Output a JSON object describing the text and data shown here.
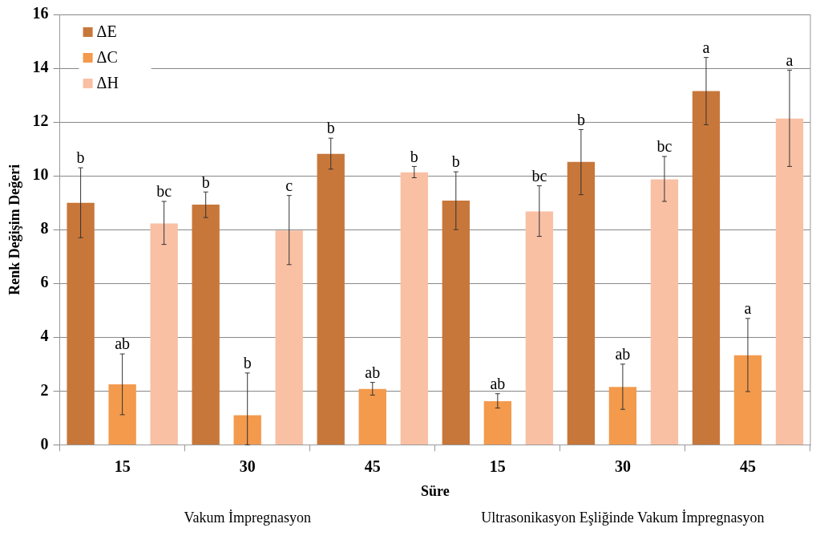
{
  "chart_data": {
    "type": "bar",
    "xlabel": "Süre",
    "ylabel": "Renk Değişim Değeri",
    "categories": [
      "15",
      "30",
      "45",
      "15",
      "30",
      "45"
    ],
    "series": [
      {
        "name": "ΔE",
        "color": "#c8773a",
        "values": [
          9.0,
          8.93,
          10.82,
          9.08,
          10.52,
          13.15
        ],
        "errors": [
          [
            7.7,
            10.3
          ],
          [
            8.45,
            9.4
          ],
          [
            10.25,
            11.4
          ],
          [
            8.0,
            10.15
          ],
          [
            9.3,
            11.72
          ],
          [
            11.9,
            14.4
          ]
        ],
        "value_labels": [
          "b",
          "b",
          "b",
          "b",
          "b",
          "a"
        ]
      },
      {
        "name": "ΔC",
        "color": "#f39a4c",
        "values": [
          2.25,
          1.1,
          2.08,
          1.62,
          2.15,
          3.33
        ],
        "errors": [
          [
            1.12,
            3.38
          ],
          [
            0,
            2.67
          ],
          [
            1.85,
            2.32
          ],
          [
            1.37,
            1.9
          ],
          [
            1.32,
            3.0
          ],
          [
            1.98,
            4.7
          ]
        ],
        "value_labels": [
          "ab",
          "b",
          "ab",
          "ab",
          "ab",
          "a"
        ]
      },
      {
        "name": "ΔH",
        "color": "#f9c0a4",
        "values": [
          8.23,
          7.97,
          10.13,
          8.68,
          9.87,
          12.13
        ],
        "errors": [
          [
            7.45,
            9.05
          ],
          [
            6.7,
            9.27
          ],
          [
            9.93,
            10.35
          ],
          [
            7.75,
            9.63
          ],
          [
            9.05,
            10.72
          ],
          [
            10.35,
            13.93
          ]
        ],
        "value_labels": [
          "bc",
          "c",
          "b",
          "bc",
          "bc",
          "a"
        ]
      }
    ],
    "ylim": [
      0,
      16
    ],
    "yticks": [
      0,
      2,
      4,
      6,
      8,
      10,
      12,
      14,
      16
    ],
    "grid": "y",
    "legend": "top left",
    "annotations": [
      "Vakum İmpregnasyon",
      "Ultrasonikasyon Eşliğinde Vakum İmpregnasyon"
    ]
  }
}
